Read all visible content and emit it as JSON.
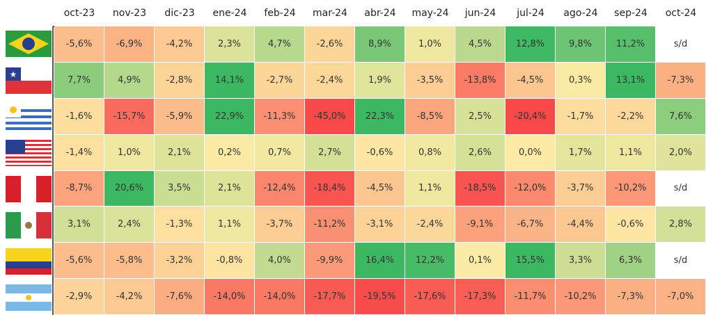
{
  "table": {
    "columns": [
      "oct-23",
      "nov-23",
      "dic-23",
      "ene-24",
      "feb-24",
      "mar-24",
      "abr-24",
      "may-24",
      "jun-24",
      "jul-24",
      "ago-24",
      "sep-24",
      "oct-24"
    ],
    "rows": [
      [
        "-5,6%",
        "-6,9%",
        "-4,2%",
        "2,3%",
        "4,7%",
        "-2,6%",
        "8,9%",
        "1,0%",
        "4,5%",
        "12,8%",
        "9,8%",
        "11,2%",
        "s/d"
      ],
      [
        "7,7%",
        "4,9%",
        "-2,8%",
        "14,1%",
        "-2,7%",
        "-2,4%",
        "1,9%",
        "-3,5%",
        "-13,8%",
        "-4,5%",
        "0,3%",
        "13,1%",
        "-7,3%"
      ],
      [
        "-1,6%",
        "-15,7%",
        "-5,9%",
        "22,9%",
        "-11,3%",
        "-45,0%",
        "22,3%",
        "-8,5%",
        "2,5%",
        "-20,4%",
        "-1,7%",
        "-2,2%",
        "7,6%"
      ],
      [
        "-1,4%",
        "1,0%",
        "2,1%",
        "0,2%",
        "0,7%",
        "2,7%",
        "-0,6%",
        "0,8%",
        "2,6%",
        "0,0%",
        "1,7%",
        "1,1%",
        "2,0%"
      ],
      [
        "-8,7%",
        "20,6%",
        "3,5%",
        "2,1%",
        "-12,4%",
        "-18,4%",
        "-4,5%",
        "1,1%",
        "-18,5%",
        "-12,0%",
        "-3,7%",
        "-10,2%",
        "s/d"
      ],
      [
        "3,1%",
        "2,4%",
        "-1,3%",
        "1,1%",
        "-3,7%",
        "-11,2%",
        "-3,1%",
        "-2,4%",
        "-9,1%",
        "-6,7%",
        "-4,4%",
        "-0,6%",
        "2,8%"
      ],
      [
        "-5,6%",
        "-5,8%",
        "-3,2%",
        "-0,8%",
        "4,0%",
        "-9,9%",
        "16,4%",
        "12,2%",
        "0,1%",
        "15,5%",
        "3,3%",
        "6,3%",
        "s/d"
      ],
      [
        "-2,9%",
        "-4,2%",
        "-7,6%",
        "-14,0%",
        "-14,0%",
        "-17,7%",
        "-19,5%",
        "-17,6%",
        "-17,3%",
        "-11,7%",
        "-10,2%",
        "-7,3%",
        "-7,0%"
      ]
    ]
  }
}
